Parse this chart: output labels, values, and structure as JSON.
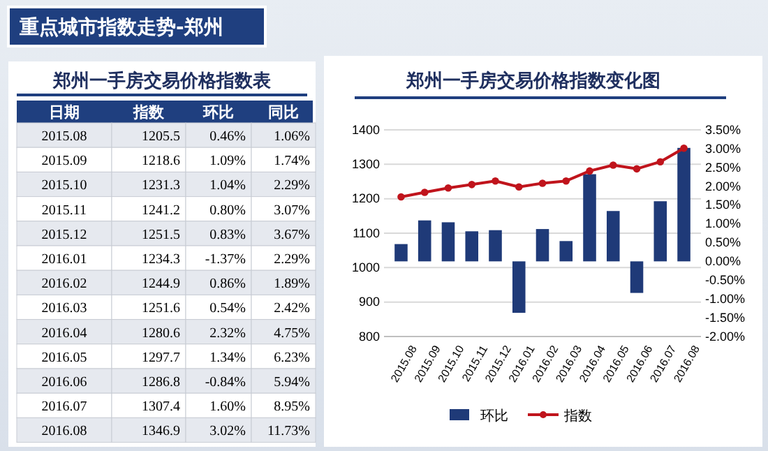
{
  "chart_data": [
    {
      "type": "heatmap",
      "title": "郑州一手房交易价格指数表",
      "annotations": [
        "重点城市指数走势-郑州"
      ],
      "ylabel": "日期",
      "categories": [
        "指数",
        "环比",
        "同比"
      ],
      "y_categories": [
        "2015.08",
        "2015.09",
        "2015.10",
        "2015.11",
        "2015.12",
        "2016.01",
        "2016.02",
        "2016.03",
        "2016.04",
        "2016.05",
        "2016.06",
        "2016.07",
        "2016.08"
      ],
      "cells": [
        [
          1205.5,
          0.46,
          1.06
        ],
        [
          1218.6,
          1.09,
          1.74
        ],
        [
          1231.3,
          1.04,
          2.29
        ],
        [
          1241.2,
          0.8,
          3.07
        ],
        [
          1251.5,
          0.83,
          3.67
        ],
        [
          1234.3,
          -1.37,
          2.29
        ],
        [
          1244.9,
          0.86,
          1.89
        ],
        [
          1251.6,
          0.54,
          2.42
        ],
        [
          1280.6,
          2.32,
          4.75
        ],
        [
          1297.7,
          1.34,
          6.23
        ],
        [
          1286.8,
          -0.84,
          5.94
        ],
        [
          1307.4,
          1.6,
          8.95
        ],
        [
          1346.9,
          3.02,
          11.73
        ]
      ],
      "cell_labels": [
        [
          "1205.5",
          "0.46%",
          "1.06%"
        ],
        [
          "1218.6",
          "1.09%",
          "1.74%"
        ],
        [
          "1231.3",
          "1.04%",
          "2.29%"
        ],
        [
          "1241.2",
          "0.80%",
          "3.07%"
        ],
        [
          "1251.5",
          "0.83%",
          "3.67%"
        ],
        [
          "1234.3",
          "-1.37%",
          "2.29%"
        ],
        [
          "1244.9",
          "0.86%",
          "1.89%"
        ],
        [
          "1251.6",
          "0.54%",
          "2.42%"
        ],
        [
          "1280.6",
          "2.32%",
          "4.75%"
        ],
        [
          "1297.7",
          "1.34%",
          "6.23%"
        ],
        [
          "1286.8",
          "-0.84%",
          "5.94%"
        ],
        [
          "1307.4",
          "1.60%",
          "8.95%"
        ],
        [
          "1346.9",
          "3.02%",
          "11.73%"
        ]
      ]
    },
    {
      "type": "bar",
      "title": "郑州一手房交易价格指数变化图",
      "categories": [
        "2015.08",
        "2015.09",
        "2015.10",
        "2015.11",
        "2015.12",
        "2016.01",
        "2016.02",
        "2016.03",
        "2016.04",
        "2016.05",
        "2016.06",
        "2016.07",
        "2016.08"
      ],
      "series": [
        {
          "name": "环比",
          "type": "bar",
          "axis": "y2",
          "color": "#1f3a78",
          "values": [
            0.46,
            1.09,
            1.04,
            0.8,
            0.83,
            -1.37,
            0.86,
            0.54,
            2.32,
            1.34,
            -0.84,
            1.6,
            3.02
          ]
        },
        {
          "name": "指数",
          "type": "line",
          "color": "#c0141c",
          "values": [
            1205.5,
            1218.6,
            1231.3,
            1241.2,
            1251.5,
            1234.3,
            1244.9,
            1251.6,
            1280.6,
            1297.7,
            1286.8,
            1307.4,
            1346.9
          ]
        }
      ],
      "ylim": [
        800,
        1400
      ],
      "yticks": [
        800,
        900,
        1000,
        1100,
        1200,
        1300,
        1400
      ],
      "y2lim": [
        -2,
        3.5
      ],
      "y2ticks": [
        {
          "value": -2,
          "label": "-2.00%"
        },
        {
          "value": -1.5,
          "label": "-1.50%"
        },
        {
          "value": -1,
          "label": "-1.00%"
        },
        {
          "value": -0.5,
          "label": "-0.50%"
        },
        {
          "value": 0,
          "label": "0.00%"
        },
        {
          "value": 0.5,
          "label": "0.50%"
        },
        {
          "value": 1,
          "label": "1.00%"
        },
        {
          "value": 1.5,
          "label": "1.50%"
        },
        {
          "value": 2,
          "label": "2.00%"
        },
        {
          "value": 2.5,
          "label": "2.50%"
        },
        {
          "value": 3,
          "label": "3.00%"
        },
        {
          "value": 3.5,
          "label": "3.50%"
        }
      ],
      "grid": "y",
      "legend": "bottom",
      "marker": "circle",
      "line_style": "solid"
    }
  ]
}
